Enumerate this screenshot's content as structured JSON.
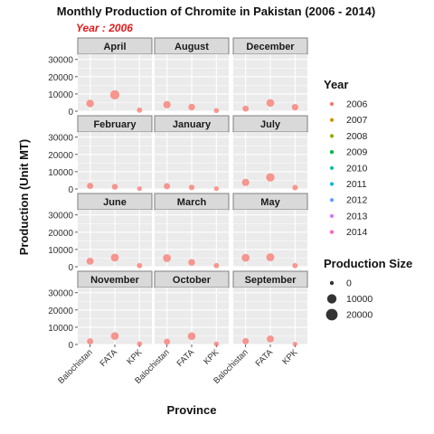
{
  "chart_data": {
    "type": "scatter",
    "title": "Monthly Production of Chromite in Pakistan (2006 - 2014)",
    "subtitle": "Year : 2006",
    "xlabel": "Province",
    "ylabel": "Production (Unit MT)",
    "grid": true,
    "categories": [
      "Balochistan",
      "FATA",
      "KPK"
    ],
    "y_ticks": [
      0,
      10000,
      20000,
      30000
    ],
    "ylim": [
      0,
      33000
    ],
    "panels": [
      {
        "name": "April",
        "values": [
          4500,
          9500,
          600
        ]
      },
      {
        "name": "August",
        "values": [
          3800,
          2400,
          400
        ]
      },
      {
        "name": "December",
        "values": [
          1500,
          4800,
          2300
        ]
      },
      {
        "name": "February",
        "values": [
          1800,
          1300,
          200
        ]
      },
      {
        "name": "January",
        "values": [
          1600,
          900,
          200
        ]
      },
      {
        "name": "July",
        "values": [
          3800,
          6700,
          800
        ]
      },
      {
        "name": "June",
        "values": [
          3200,
          5300,
          600
        ]
      },
      {
        "name": "March",
        "values": [
          5000,
          2500,
          600
        ]
      },
      {
        "name": "May",
        "values": [
          5200,
          5500,
          600
        ]
      },
      {
        "name": "November",
        "values": [
          1800,
          4900,
          400
        ]
      },
      {
        "name": "October",
        "values": [
          1600,
          4800,
          300
        ]
      },
      {
        "name": "September",
        "values": [
          1900,
          3200,
          200
        ]
      }
    ],
    "legend_color": {
      "title": "Year",
      "placement": "right",
      "entries": [
        {
          "label": "2006",
          "color": "#F8766D"
        },
        {
          "label": "2007",
          "color": "#D39200"
        },
        {
          "label": "2008",
          "color": "#93AA00"
        },
        {
          "label": "2009",
          "color": "#00BA38"
        },
        {
          "label": "2010",
          "color": "#00C19F"
        },
        {
          "label": "2011",
          "color": "#00B9E3"
        },
        {
          "label": "2012",
          "color": "#619CFF"
        },
        {
          "label": "2013",
          "color": "#DB72FB"
        },
        {
          "label": "2014",
          "color": "#FF61C3"
        }
      ]
    },
    "legend_size": {
      "title": "Production Size",
      "placement": "right",
      "entries": [
        {
          "label": "0",
          "value": 0
        },
        {
          "label": "10000",
          "value": 10000
        },
        {
          "label": "20000",
          "value": 20000
        }
      ]
    },
    "colors": {
      "point": "#F8766D",
      "panel_bg": "#EBEBEB",
      "strip_bg": "#D9D9D9",
      "subtitle": "#E31A1C"
    }
  }
}
